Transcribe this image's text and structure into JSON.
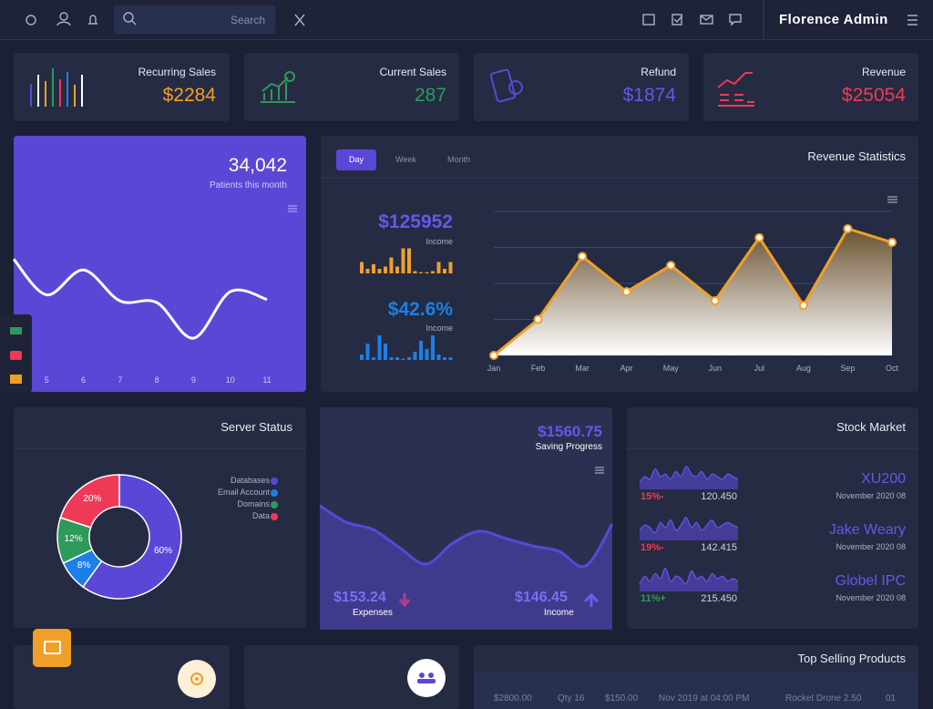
{
  "topbar": {
    "search_placeholder": "Search",
    "brand": "Florence Admin"
  },
  "stats": [
    {
      "label": "Recurring Sales",
      "value": "$2284",
      "color": "#f0a028"
    },
    {
      "label": "Current Sales",
      "value": "287",
      "color": "#2e9a59"
    },
    {
      "label": "Refund",
      "value": "$1874",
      "color": "#6a55e8"
    },
    {
      "label": "Revenue",
      "value": "$25054",
      "color": "#ef3a57"
    }
  ],
  "patients": {
    "value": "34,042",
    "caption": "Patients this month",
    "chart": {
      "type": "line",
      "x": [
        4.1,
        5,
        6,
        7,
        8,
        9,
        10,
        11
      ],
      "values": [
        68,
        45,
        61,
        41,
        40,
        17,
        47,
        42
      ],
      "xlim": [
        4.1,
        11
      ],
      "xticks": [
        5,
        6,
        7,
        8,
        9,
        10,
        11
      ],
      "ylim": [
        0,
        100
      ],
      "color": "#ffffff"
    }
  },
  "revenue": {
    "title": "Revenue Statistics",
    "tabs": [
      "Day",
      "Week",
      "Month"
    ],
    "income": {
      "value": "$125952",
      "label": "Income",
      "bars": [
        5,
        2,
        4,
        2,
        3,
        7,
        3,
        11,
        11,
        1,
        0.5,
        0.5,
        1,
        5,
        2,
        5
      ],
      "ylim": [
        0,
        12
      ],
      "color": "#f0a028"
    },
    "growth": {
      "value": "$42.6%",
      "label": "Income",
      "bars": [
        2,
        6,
        1,
        9,
        6,
        1,
        1,
        0.5,
        1,
        3,
        7,
        4,
        9,
        2,
        1,
        1
      ],
      "ylim": [
        0,
        10
      ],
      "color": "#1c7fe8"
    },
    "chart": {
      "type": "line",
      "categories": [
        "Jan",
        "Feb",
        "Mar",
        "Apr",
        "May",
        "Jun",
        "Jul",
        "Aug",
        "Sep",
        "Oct"
      ],
      "values": [
        0,
        1,
        2.75,
        1.77,
        2.5,
        1.52,
        3.27,
        1.39,
        3.52,
        3.14
      ],
      "ylim": [
        0,
        4
      ],
      "yticks": [
        0,
        1,
        2,
        3,
        4
      ],
      "grid": true,
      "color": "#f0a028"
    }
  },
  "server": {
    "title": "Server Status",
    "chart": {
      "type": "pie",
      "categories": [
        "Databases",
        "Email Account",
        "Domains",
        "Data"
      ],
      "values": [
        60,
        8,
        12,
        20
      ],
      "value_labels": [
        "60%",
        "8%",
        "12%",
        "20%"
      ],
      "colors": [
        "#5b47d6",
        "#1c7fe8",
        "#2e9a59",
        "#ef3a57"
      ]
    }
  },
  "saving": {
    "value": "$1560.75",
    "label": "Saving Progress",
    "chart": {
      "type": "area",
      "values": [
        136,
        118,
        110,
        90,
        72,
        95,
        108,
        100,
        92,
        86,
        70,
        116
      ],
      "ylim": [
        0,
        150
      ],
      "color": "#5b47d6"
    },
    "expenses": {
      "value": "$153.24",
      "label": "Expenses"
    },
    "income": {
      "value": "$146.45",
      "label": "Income"
    }
  },
  "stocks": {
    "title": "Stock Market",
    "ylim": [
      0,
      10
    ],
    "items": [
      {
        "name": "XU200",
        "date": "November 2020 08",
        "change": "15%-",
        "price": "120.450",
        "trend_color": "#ef3a57",
        "spark": [
          3,
          5,
          4,
          8,
          5,
          6,
          4,
          7,
          5,
          9,
          6,
          5,
          7,
          4,
          6,
          5,
          4,
          6,
          5,
          4
        ]
      },
      {
        "name": "Jake Weary",
        "date": "November 2020 08",
        "change": "19%-",
        "price": "142.415",
        "trend_color": "#ef3a57",
        "spark": [
          4,
          6,
          5,
          3,
          7,
          5,
          8,
          4,
          6,
          9,
          5,
          7,
          4,
          6,
          8,
          5,
          6,
          7,
          6,
          5
        ]
      },
      {
        "name": "Globel IPC",
        "date": "November 2020 08",
        "change": "11%+",
        "price": "215.450",
        "trend_color": "#2e9a59",
        "spark": [
          3,
          6,
          4,
          7,
          5,
          9,
          4,
          6,
          5,
          3,
          8,
          5,
          6,
          4,
          7,
          5,
          6,
          4,
          5,
          4
        ]
      }
    ]
  },
  "top_selling": {
    "title": "Top Selling Products",
    "row": [
      "$2800.00",
      "Qty 16",
      "$150.00",
      "Nov 2019 at 04:00 PM",
      "Rocket Drone 2.50",
      "01"
    ]
  }
}
